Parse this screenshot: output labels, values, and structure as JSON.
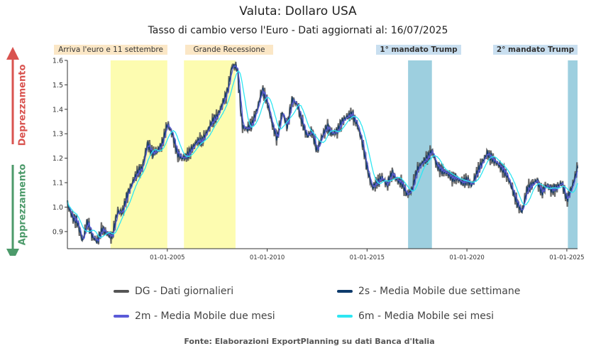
{
  "chart_data": {
    "type": "line",
    "title": "Valuta: Dollaro USA",
    "subtitle": "Tasso di cambio verso l'Euro - Dati aggiornati al: 16/07/2025",
    "x_range": [
      "2000-01-01",
      "2025-07-16"
    ],
    "x_ticks": [
      "01-01-2005",
      "01-01-2010",
      "01-01-2015",
      "01-01-2020",
      "01-01-2025"
    ],
    "y_ticks": [
      "0.9",
      "1.0",
      "1.1",
      "1.2",
      "1.3",
      "1.4",
      "1.5",
      "1.6"
    ],
    "ylim": [
      0.83,
      1.6
    ],
    "grid": false,
    "legend_position": "bottom",
    "side_labels": {
      "up": "Deprezzamento",
      "down": "Apprezzamento"
    },
    "shaded_periods": [
      {
        "label": "Arriva l'euro e 11 settembre",
        "start": "2002-03-01",
        "end": "2005-01-01",
        "color": "#fdfcb0"
      },
      {
        "label": "Grande Recessione",
        "start": "2005-11-01",
        "end": "2008-06-01",
        "color": "#fdfcb0"
      },
      {
        "label": "1° mandato Trump",
        "start": "2017-01-20",
        "end": "2018-04-01",
        "color": "#9dcfdf"
      },
      {
        "label": "2° mandato Trump",
        "start": "2025-01-20",
        "end": "2025-07-16",
        "color": "#9dcfdf"
      }
    ],
    "series": [
      {
        "name": "DG - Dati giornalieri",
        "color": "#555555",
        "x": [
          "2000-01-01",
          "2000-04-01",
          "2000-07-01",
          "2000-10-01",
          "2001-01-01",
          "2001-04-01",
          "2001-07-01",
          "2001-10-01",
          "2002-01-01",
          "2002-04-01",
          "2002-07-01",
          "2002-10-01",
          "2003-01-01",
          "2003-04-01",
          "2003-07-01",
          "2003-10-01",
          "2004-01-01",
          "2004-04-01",
          "2004-07-01",
          "2004-10-01",
          "2005-01-01",
          "2005-04-01",
          "2005-07-01",
          "2005-10-01",
          "2006-01-01",
          "2006-04-01",
          "2006-07-01",
          "2006-10-01",
          "2007-01-01",
          "2007-04-01",
          "2007-07-01",
          "2007-10-01",
          "2008-01-01",
          "2008-04-01",
          "2008-07-01",
          "2008-10-01",
          "2009-01-01",
          "2009-04-01",
          "2009-07-01",
          "2009-10-01",
          "2010-01-01",
          "2010-04-01",
          "2010-07-01",
          "2010-10-01",
          "2011-01-01",
          "2011-04-01",
          "2011-07-01",
          "2011-10-01",
          "2012-01-01",
          "2012-04-01",
          "2012-07-01",
          "2012-10-01",
          "2013-01-01",
          "2013-04-01",
          "2013-07-01",
          "2013-10-01",
          "2014-01-01",
          "2014-04-01",
          "2014-07-01",
          "2014-10-01",
          "2015-01-01",
          "2015-04-01",
          "2015-07-01",
          "2015-10-01",
          "2016-01-01",
          "2016-04-01",
          "2016-07-01",
          "2016-10-01",
          "2017-01-01",
          "2017-04-01",
          "2017-07-01",
          "2017-10-01",
          "2018-01-01",
          "2018-04-01",
          "2018-07-01",
          "2018-10-01",
          "2019-01-01",
          "2019-04-01",
          "2019-07-01",
          "2019-10-01",
          "2020-01-01",
          "2020-04-01",
          "2020-07-01",
          "2020-10-01",
          "2021-01-01",
          "2021-04-01",
          "2021-07-01",
          "2021-10-01",
          "2022-01-01",
          "2022-04-01",
          "2022-07-01",
          "2022-10-01",
          "2023-01-01",
          "2023-04-01",
          "2023-07-01",
          "2023-10-01",
          "2024-01-01",
          "2024-04-01",
          "2024-07-01",
          "2024-10-01",
          "2025-01-01",
          "2025-04-01",
          "2025-07-16"
        ],
        "values": [
          1.01,
          0.96,
          0.94,
          0.86,
          0.94,
          0.88,
          0.86,
          0.91,
          0.89,
          0.88,
          0.98,
          0.98,
          1.05,
          1.1,
          1.14,
          1.16,
          1.26,
          1.22,
          1.23,
          1.26,
          1.34,
          1.3,
          1.22,
          1.2,
          1.21,
          1.24,
          1.27,
          1.27,
          1.31,
          1.35,
          1.37,
          1.42,
          1.47,
          1.58,
          1.57,
          1.33,
          1.32,
          1.34,
          1.4,
          1.48,
          1.43,
          1.34,
          1.28,
          1.39,
          1.33,
          1.44,
          1.42,
          1.35,
          1.29,
          1.31,
          1.23,
          1.29,
          1.33,
          1.3,
          1.31,
          1.35,
          1.37,
          1.38,
          1.34,
          1.27,
          1.16,
          1.08,
          1.1,
          1.12,
          1.09,
          1.14,
          1.11,
          1.1,
          1.05,
          1.07,
          1.15,
          1.18,
          1.2,
          1.23,
          1.17,
          1.15,
          1.14,
          1.12,
          1.12,
          1.1,
          1.11,
          1.09,
          1.14,
          1.18,
          1.22,
          1.2,
          1.18,
          1.16,
          1.13,
          1.08,
          1.02,
          0.98,
          1.07,
          1.09,
          1.11,
          1.06,
          1.09,
          1.07,
          1.08,
          1.1,
          1.03,
          1.08,
          1.16
        ]
      },
      {
        "name": "2s - Media Mobile due settimane",
        "color": "#0d3a6b"
      },
      {
        "name": "2m - Media Mobile due mesi",
        "color": "#5a5ad8"
      },
      {
        "name": "6m - Media Mobile sei mesi",
        "color": "#2ee6f2"
      }
    ],
    "source": "Fonte: Elaborazioni ExportPlanning su dati Banca d'Italia"
  }
}
